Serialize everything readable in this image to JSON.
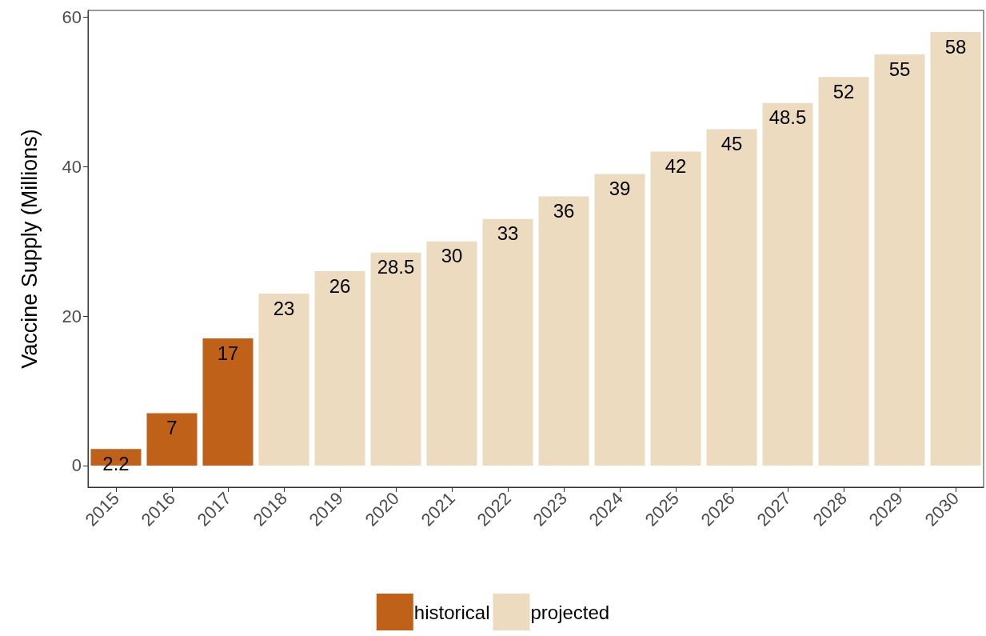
{
  "chart_data": {
    "type": "bar",
    "ylabel": "Vaccine Supply (Millions)",
    "categories": [
      "2015",
      "2016",
      "2017",
      "2018",
      "2019",
      "2020",
      "2021",
      "2022",
      "2023",
      "2024",
      "2025",
      "2026",
      "2027",
      "2028",
      "2029",
      "2030"
    ],
    "series": [
      {
        "name": "historical",
        "color": "#c0611a",
        "values": [
          2.2,
          7,
          17,
          null,
          null,
          null,
          null,
          null,
          null,
          null,
          null,
          null,
          null,
          null,
          null,
          null
        ]
      },
      {
        "name": "projected",
        "color": "#ecdbbf",
        "values": [
          null,
          null,
          null,
          23,
          26,
          28.5,
          30,
          33,
          36,
          39,
          42,
          45,
          48.5,
          52,
          55,
          58
        ]
      }
    ],
    "stacked": true,
    "ylim": [
      -2.9,
      60.9
    ],
    "yticks": [
      0,
      20,
      40,
      60
    ],
    "data_labels": true,
    "grid": false,
    "legend": "bottom"
  }
}
